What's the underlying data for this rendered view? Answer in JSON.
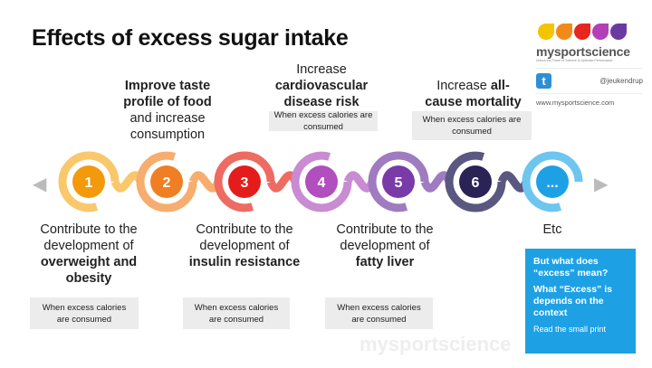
{
  "title": "Effects of excess sugar intake",
  "brand": {
    "name": "mysportscience",
    "tagline": "Unlock the Power of Science to Optimise Performance",
    "twitter_handle": "@jeukendrup",
    "website": "www.mysportscience.com",
    "drop_colors": [
      "#f5c400",
      "#f28a1a",
      "#e5271f",
      "#b33fb8",
      "#6b3aa0"
    ]
  },
  "steps": [
    {
      "number": "1",
      "color": "#f29a0c",
      "ring": "#f8c86a"
    },
    {
      "number": "2",
      "color": "#f07f23",
      "ring": "#f6ad6e"
    },
    {
      "number": "3",
      "color": "#e41c1c",
      "ring": "#ee6b62"
    },
    {
      "number": "4",
      "color": "#b04fbd",
      "ring": "#c98bd2"
    },
    {
      "number": "5",
      "color": "#7a3aa8",
      "ring": "#9f7bc0"
    },
    {
      "number": "6",
      "color": "#2a2356",
      "ring": "#5a5780"
    },
    {
      "number": "...",
      "color": "#1ea1e4",
      "ring": "#6cc6f0"
    }
  ],
  "top_labels": {
    "s2": {
      "bold": "Improve taste profile of food",
      "rest": "and increase consumption"
    },
    "s4": {
      "pre": "Increase",
      "bold": "cardiovascular disease risk",
      "note": "When excess calories are consumed"
    },
    "s6": {
      "pre": "Increase ",
      "bold1": "all-",
      "bold2": "cause mortality",
      "note": "When excess calories are consumed"
    }
  },
  "bottom_labels": {
    "s1": {
      "pre": "Contribute to the development of",
      "bold": "overweight and obesity",
      "note": "When excess calories are consumed"
    },
    "s3": {
      "pre": "Contribute to the development of",
      "bold": "insulin resistance",
      "note": "When excess calories are consumed"
    },
    "s5": {
      "pre": "Contribute to the development of",
      "bold": "fatty liver",
      "note": "When excess calories are consumed"
    },
    "s7": {
      "pre": "Etc"
    }
  },
  "callout": {
    "q1": "But what does “excess” mean?",
    "q2": "What “Excess” is depends on the context",
    "small": "Read the small print"
  },
  "watermark": "mysportscience",
  "icons": {
    "left": "arrow-left-icon",
    "right": "arrow-right-icon",
    "twitter": "twitter-icon"
  }
}
